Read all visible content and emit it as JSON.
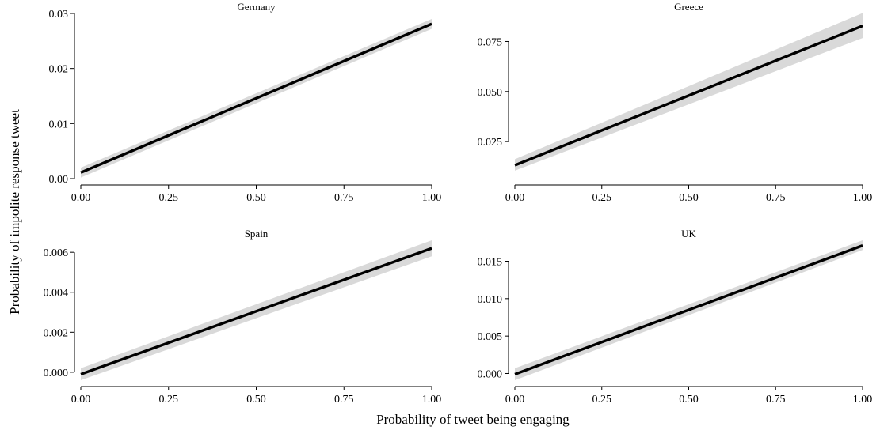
{
  "chart_data": {
    "type": "line",
    "layout": "facet-grid-2x2",
    "xlabel": "Probability of tweet being engaging",
    "ylabel": "Probability of impolite response tweet",
    "line_color": "#000000",
    "band_color": "#d9d9d9",
    "grid": false,
    "legend": "none",
    "panels": [
      {
        "title": "Germany",
        "x": [
          0,
          1
        ],
        "y": [
          0.0011,
          0.0281
        ],
        "ci_lower": [
          0.0002,
          0.0272
        ],
        "ci_upper": [
          0.002,
          0.029
        ],
        "xlim": [
          0,
          1
        ],
        "ylim": [
          0,
          0.03
        ],
        "x_ticks": [
          0,
          0.25,
          0.5,
          0.75,
          1
        ],
        "x_tick_labels": [
          "0.00",
          "0.25",
          "0.50",
          "0.75",
          "1.00"
        ],
        "y_ticks": [
          0,
          0.01,
          0.02,
          0.03
        ],
        "y_tick_labels": [
          "0.00",
          "0.01",
          "0.02",
          "0.03"
        ]
      },
      {
        "title": "Greece",
        "x": [
          0,
          1
        ],
        "y": [
          0.0132,
          0.0828
        ],
        "ci_lower": [
          0.0105,
          0.0767
        ],
        "ci_upper": [
          0.0162,
          0.0892
        ],
        "xlim": [
          0,
          1
        ],
        "ylim": [
          0.0065,
          0.089
        ],
        "x_ticks": [
          0,
          0.25,
          0.5,
          0.75,
          1
        ],
        "x_tick_labels": [
          "0.00",
          "0.25",
          "0.50",
          "0.75",
          "1.00"
        ],
        "y_ticks": [
          0.025,
          0.05,
          0.075
        ],
        "y_tick_labels": [
          "0.025",
          "0.050",
          "0.075"
        ]
      },
      {
        "title": "Spain",
        "x": [
          0,
          1
        ],
        "y": [
          -0.0001,
          0.0062
        ],
        "ci_lower": [
          -0.0004,
          0.0058
        ],
        "ci_upper": [
          0.0002,
          0.0066
        ],
        "xlim": [
          0,
          1
        ],
        "ylim": [
          -0.0004,
          0.0066
        ],
        "x_ticks": [
          0,
          0.25,
          0.5,
          0.75,
          1
        ],
        "x_tick_labels": [
          "0.00",
          "0.25",
          "0.50",
          "0.75",
          "1.00"
        ],
        "y_ticks": [
          0,
          0.002,
          0.004,
          0.006
        ],
        "y_tick_labels": [
          "0.000",
          "0.002",
          "0.004",
          "0.006"
        ]
      },
      {
        "title": "UK",
        "x": [
          0,
          1
        ],
        "y": [
          -0.0001,
          0.0171
        ],
        "ci_lower": [
          -0.0009,
          0.0165
        ],
        "ci_upper": [
          0.0007,
          0.0178
        ],
        "xlim": [
          0,
          1
        ],
        "ylim": [
          -0.0009,
          0.0178
        ],
        "x_ticks": [
          0,
          0.25,
          0.5,
          0.75,
          1
        ],
        "x_tick_labels": [
          "0.00",
          "0.25",
          "0.50",
          "0.75",
          "1.00"
        ],
        "y_ticks": [
          0,
          0.005,
          0.01,
          0.015
        ],
        "y_tick_labels": [
          "0.000",
          "0.005",
          "0.010",
          "0.015"
        ]
      }
    ]
  }
}
